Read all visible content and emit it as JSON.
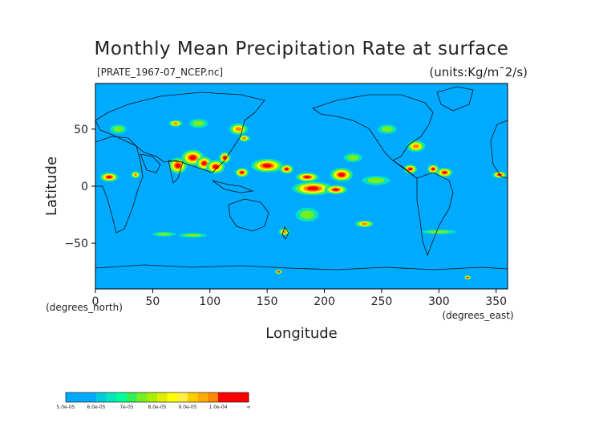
{
  "title": "Monthly Mean Precipitation Rate at surface",
  "source_file": "[PRATE_1967-07_NCEP.nc]",
  "units": "(units:Kg/m¯2/s)",
  "axes": {
    "x": {
      "label": "Longitude",
      "unit_label": "(degrees_east)",
      "range": [
        0,
        360
      ],
      "ticks": [
        {
          "value": 0,
          "label": "0"
        },
        {
          "value": 50,
          "label": "50"
        },
        {
          "value": 100,
          "label": "100"
        },
        {
          "value": 150,
          "label": "150"
        },
        {
          "value": 200,
          "label": "200"
        },
        {
          "value": 250,
          "label": "250"
        },
        {
          "value": 300,
          "label": "300"
        },
        {
          "value": 350,
          "label": "350"
        }
      ]
    },
    "y": {
      "label": "Latitude",
      "unit_label": "(degrees_north)",
      "range": [
        -90,
        90
      ],
      "ticks": [
        {
          "value": 50,
          "label": "50"
        },
        {
          "value": 0,
          "label": "0"
        },
        {
          "value": -50,
          "label": "−50"
        }
      ]
    }
  },
  "colors": {
    "ocean_background": "#00aaff",
    "frame": "#000000",
    "coast": "#111111"
  },
  "colorbar": {
    "bins": [
      {
        "color": "#00aaff"
      },
      {
        "color": "#00aaff"
      },
      {
        "color": "#00aaff"
      },
      {
        "color": "#00ccdd"
      },
      {
        "color": "#00e5bb"
      },
      {
        "color": "#00ff99"
      },
      {
        "color": "#33ee55"
      },
      {
        "color": "#77ee22"
      },
      {
        "color": "#aaee00"
      },
      {
        "color": "#ddee00"
      },
      {
        "color": "#ffff00"
      },
      {
        "color": "#ffee44"
      },
      {
        "color": "#ffcc00"
      },
      {
        "color": "#ffaa00"
      },
      {
        "color": "#ff8800"
      },
      {
        "color": "#ff0000"
      },
      {
        "color": "#ff0000"
      },
      {
        "color": "#ff0000"
      }
    ],
    "labels": [
      "5.0e-05",
      "6.0e-05",
      "7e-05",
      "8.0e-05",
      "9.0e-05",
      "1.0e-04",
      "∞"
    ]
  },
  "precip_regions": [
    {
      "lon": 12,
      "lat": 8,
      "rx": 8,
      "ry": 4,
      "level": "high"
    },
    {
      "lon": 35,
      "lat": 10,
      "rx": 4,
      "ry": 3,
      "level": "med"
    },
    {
      "lon": 72,
      "lat": 18,
      "rx": 8,
      "ry": 7,
      "level": "high"
    },
    {
      "lon": 85,
      "lat": 25,
      "rx": 10,
      "ry": 7,
      "level": "high"
    },
    {
      "lon": 95,
      "lat": 20,
      "rx": 7,
      "ry": 6,
      "level": "high"
    },
    {
      "lon": 105,
      "lat": 17,
      "rx": 8,
      "ry": 6,
      "level": "high"
    },
    {
      "lon": 113,
      "lat": 25,
      "rx": 5,
      "ry": 5,
      "level": "high"
    },
    {
      "lon": 128,
      "lat": 12,
      "rx": 6,
      "ry": 4,
      "level": "high"
    },
    {
      "lon": 150,
      "lat": 18,
      "rx": 14,
      "ry": 6,
      "level": "high"
    },
    {
      "lon": 167,
      "lat": 15,
      "rx": 6,
      "ry": 4,
      "level": "high"
    },
    {
      "lon": 185,
      "lat": 8,
      "rx": 10,
      "ry": 4,
      "level": "high"
    },
    {
      "lon": 190,
      "lat": -2,
      "rx": 18,
      "ry": 6,
      "level": "high"
    },
    {
      "lon": 215,
      "lat": 10,
      "rx": 10,
      "ry": 6,
      "level": "high"
    },
    {
      "lon": 210,
      "lat": -3,
      "rx": 10,
      "ry": 4,
      "level": "high"
    },
    {
      "lon": 275,
      "lat": 15,
      "rx": 6,
      "ry": 4,
      "level": "high"
    },
    {
      "lon": 295,
      "lat": 15,
      "rx": 5,
      "ry": 4,
      "level": "high"
    },
    {
      "lon": 305,
      "lat": 12,
      "rx": 7,
      "ry": 4,
      "level": "high"
    },
    {
      "lon": 353,
      "lat": 10,
      "rx": 6,
      "ry": 3,
      "level": "high"
    },
    {
      "lon": 325,
      "lat": -80,
      "rx": 3,
      "ry": 2,
      "level": "high"
    },
    {
      "lon": 160,
      "lat": -75,
      "rx": 3,
      "ry": 2,
      "level": "high"
    },
    {
      "lon": 235,
      "lat": -33,
      "rx": 8,
      "ry": 3,
      "level": "med"
    },
    {
      "lon": 165,
      "lat": -40,
      "rx": 5,
      "ry": 3,
      "level": "med"
    },
    {
      "lon": 70,
      "lat": 55,
      "rx": 6,
      "ry": 3,
      "level": "med"
    },
    {
      "lon": 125,
      "lat": 50,
      "rx": 8,
      "ry": 5,
      "level": "med"
    },
    {
      "lon": 130,
      "lat": 42,
      "rx": 5,
      "ry": 3,
      "level": "med"
    },
    {
      "lon": 280,
      "lat": 35,
      "rx": 8,
      "ry": 5,
      "level": "med"
    },
    {
      "lon": 20,
      "lat": 50,
      "rx": 7,
      "ry": 4,
      "level": "low"
    },
    {
      "lon": 90,
      "lat": 55,
      "rx": 8,
      "ry": 4,
      "level": "low"
    },
    {
      "lon": 255,
      "lat": 50,
      "rx": 8,
      "ry": 4,
      "level": "low"
    },
    {
      "lon": 85,
      "lat": -43,
      "rx": 12,
      "ry": 2,
      "level": "low"
    },
    {
      "lon": 60,
      "lat": -42,
      "rx": 10,
      "ry": 2,
      "level": "low"
    },
    {
      "lon": 300,
      "lat": -40,
      "rx": 15,
      "ry": 2,
      "level": "low"
    },
    {
      "lon": 185,
      "lat": -25,
      "rx": 10,
      "ry": 6,
      "level": "low"
    },
    {
      "lon": 245,
      "lat": 5,
      "rx": 12,
      "ry": 4,
      "level": "low"
    },
    {
      "lon": 225,
      "lat": 25,
      "rx": 8,
      "ry": 4,
      "level": "low"
    }
  ]
}
